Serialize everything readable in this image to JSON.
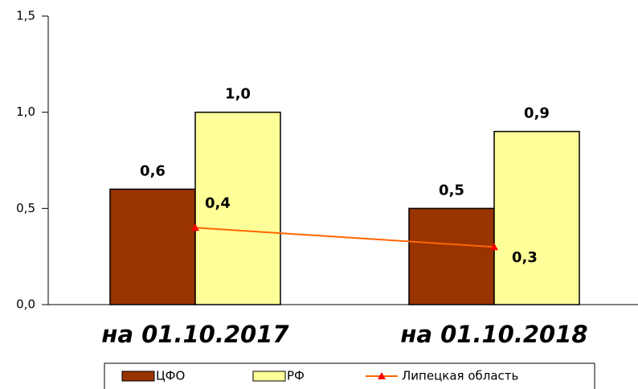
{
  "chart_data": {
    "type": "bar",
    "categories": [
      "на 01.10.2017",
      "на 01.10.2018"
    ],
    "series": [
      {
        "name": "ЦФО",
        "color": "#993300",
        "values": [
          0.6,
          0.5
        ],
        "value_labels": [
          "0,6",
          "0,5"
        ]
      },
      {
        "name": "РФ",
        "color": "#ffff99",
        "values": [
          1.0,
          0.9
        ],
        "value_labels": [
          "1,0",
          "0,9"
        ]
      },
      {
        "name": "Липецкая область",
        "type": "line",
        "color": "#ff6600",
        "marker_color": "#ff0000",
        "values": [
          0.4,
          0.3
        ],
        "value_labels": [
          "0,4",
          "0,3"
        ]
      }
    ],
    "ylim": [
      0,
      1.5
    ],
    "yticks": [
      {
        "value": 0,
        "label": "0,0"
      },
      {
        "value": 0.5,
        "label": "0,5"
      },
      {
        "value": 1.0,
        "label": "1,0"
      },
      {
        "value": 1.5,
        "label": "1,5"
      }
    ],
    "legend": "bottom"
  }
}
